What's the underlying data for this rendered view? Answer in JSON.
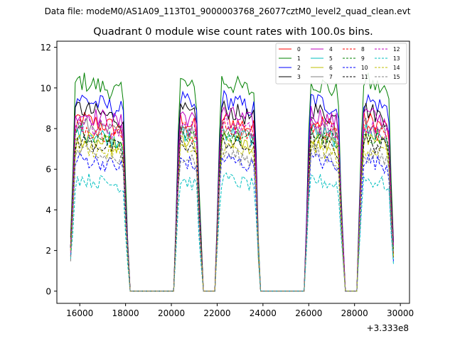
{
  "figure": {
    "suptitle": "Data file: modeM0/AS1A09_113T01_9000003768_26077cztM0_level2_quad_clean.evt"
  },
  "chart_data": {
    "type": "line",
    "title": "Quadrant 0 module wise count rates with 100.0s bins.",
    "xlabel": "",
    "ylabel": "",
    "x_offset_label": "+3.333e8",
    "xlim": [
      15000,
      30400
    ],
    "ylim": [
      -0.6,
      12.3
    ],
    "xticks": [
      16000,
      18000,
      20000,
      22000,
      24000,
      26000,
      28000,
      30000
    ],
    "yticks": [
      0,
      2,
      4,
      6,
      8,
      10,
      12
    ],
    "grid": false,
    "legend": {
      "position": "top-right",
      "columns": 4
    },
    "gti_segments": [
      [
        15600,
        18100
      ],
      [
        20150,
        21300
      ],
      [
        21950,
        23850
      ],
      [
        25850,
        27500
      ],
      [
        28150,
        29700
      ]
    ],
    "gap_level": 0,
    "series": [
      {
        "name": "0",
        "color": "#ff0000",
        "dash": "solid",
        "base": 8.6
      },
      {
        "name": "1",
        "color": "#008000",
        "dash": "solid",
        "base": 10.5
      },
      {
        "name": "2",
        "color": "#0000ff",
        "dash": "solid",
        "base": 9.6
      },
      {
        "name": "3",
        "color": "#000000",
        "dash": "solid",
        "base": 9.1
      },
      {
        "name": "4",
        "color": "#bf00bf",
        "dash": "solid",
        "base": 8.9
      },
      {
        "name": "5",
        "color": "#00bfbf",
        "dash": "solid",
        "base": 8.0
      },
      {
        "name": "6",
        "color": "#bfbf00",
        "dash": "solid",
        "base": 7.6
      },
      {
        "name": "7",
        "color": "#808080",
        "dash": "solid",
        "base": 8.3
      },
      {
        "name": "8",
        "color": "#ff0000",
        "dash": "dashed",
        "base": 8.2
      },
      {
        "name": "9",
        "color": "#008000",
        "dash": "dashed",
        "base": 7.9
      },
      {
        "name": "10",
        "color": "#0000ff",
        "dash": "dashed",
        "base": 6.6
      },
      {
        "name": "11",
        "color": "#000000",
        "dash": "dashed",
        "base": 7.5
      },
      {
        "name": "12",
        "color": "#bf00bf",
        "dash": "dashed",
        "base": 8.4
      },
      {
        "name": "13",
        "color": "#00bfbf",
        "dash": "dashed",
        "base": 5.6
      },
      {
        "name": "14",
        "color": "#bfbf00",
        "dash": "dashed",
        "base": 7.2
      },
      {
        "name": "15",
        "color": "#808080",
        "dash": "dashed",
        "base": 6.9
      }
    ]
  }
}
